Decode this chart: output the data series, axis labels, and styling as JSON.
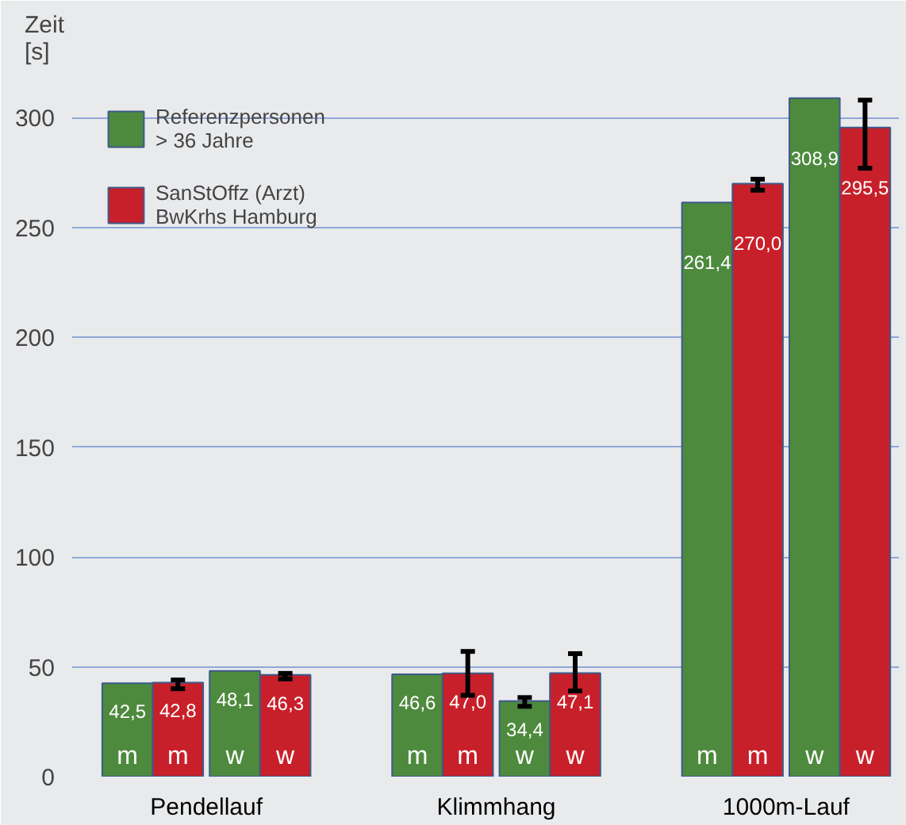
{
  "chart_data": {
    "type": "bar",
    "ylabel": "Zeit\n[s]",
    "categories": [
      "m",
      "w",
      "m",
      "w",
      "m",
      "w"
    ],
    "annotations": [
      "Pendellauf",
      "Klimmhang",
      "1000m-Lauf"
    ],
    "series": [
      {
        "name": "Referenzpersonen\n> 36 Jahre",
        "color": "#4e8a3e",
        "values": [
          42.5,
          48.1,
          46.6,
          34.4,
          261.4,
          308.9
        ],
        "value_labels": [
          "42,5",
          "48,1",
          "46,6",
          "34,4",
          "261,4",
          "308,9"
        ],
        "errors": [
          null,
          null,
          null,
          [
            32,
            36
          ],
          null,
          null
        ]
      },
      {
        "name": "SanStOffz (Arzt)\nBwKrhs Hamburg",
        "color": "#c8202a",
        "values": [
          42.8,
          46.3,
          47.0,
          47.1,
          270.0,
          295.5
        ],
        "value_labels": [
          "42,8",
          "46,3",
          "47,0",
          "47,1",
          "270,0",
          "295,5"
        ],
        "errors": [
          [
            40,
            44
          ],
          [
            44.5,
            47
          ],
          [
            37,
            57
          ],
          [
            39,
            56
          ],
          [
            267,
            272
          ],
          [
            277,
            308
          ]
        ]
      }
    ],
    "ylim": [
      0,
      320
    ],
    "yticks": [
      0,
      50,
      100,
      150,
      200,
      250,
      300
    ],
    "grid": "y",
    "legend": "top left"
  }
}
